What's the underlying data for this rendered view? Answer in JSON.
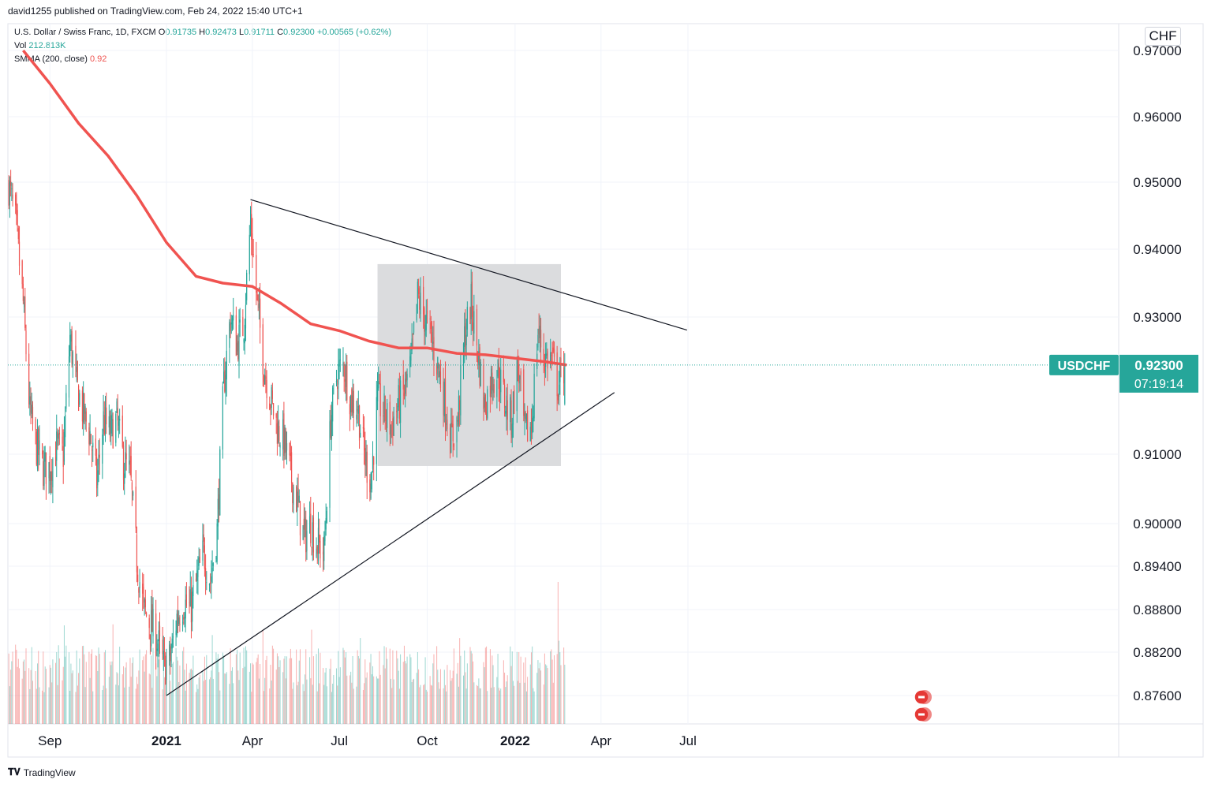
{
  "header": {
    "published": "david1255 published on TradingView.com, Feb 24, 2022 15:40 UTC+1"
  },
  "legend": {
    "symbol": "U.S. Dollar / Swiss Franc, 1D, FXCM",
    "o_label": "O",
    "o": "0.91735",
    "h_label": "H",
    "h": "0.92473",
    "l_label": "L",
    "l": "0.91711",
    "c_label": "C",
    "c": "0.92300",
    "change": "+0.00565 (+0.62%)",
    "vol_label": "Vol",
    "vol": "212.813K",
    "smma_label": "SMMA (200, close)",
    "smma": "0.92"
  },
  "currency": "CHF",
  "price_tag": {
    "symbol": "USDCHF",
    "price": "0.92300",
    "countdown": "07:19:14"
  },
  "footer": {
    "brand": "TradingView"
  },
  "colors": {
    "up": "#26a69a",
    "down": "#ef5350",
    "smma": "#f05350",
    "box": "#d9dadc"
  },
  "chart_data": {
    "type": "candlestick",
    "y_tick_labels": [
      "0.97000",
      "0.96000",
      "0.95000",
      "0.94000",
      "0.93000",
      "0.91000",
      "0.90000",
      "0.89400",
      "0.88800",
      "0.88200",
      "0.87600"
    ],
    "x_tick_labels": [
      "Sep",
      "2021",
      "Apr",
      "Jul",
      "Oct",
      "2022",
      "Apr",
      "Jul"
    ],
    "bold_x_labels": [
      "2021",
      "2022"
    ],
    "series_close_path": [
      [
        "2020-07-20",
        0.9495
      ],
      [
        "2020-07-27",
        0.944
      ],
      [
        "2020-08-04",
        0.932
      ],
      [
        "2020-08-11",
        0.916
      ],
      [
        "2020-08-18",
        0.911
      ],
      [
        "2020-08-25",
        0.908
      ],
      [
        "2020-09-01",
        0.908
      ],
      [
        "2020-09-08",
        0.911
      ],
      [
        "2020-09-15",
        0.91
      ],
      [
        "2020-09-22",
        0.927
      ],
      [
        "2020-09-29",
        0.92
      ],
      [
        "2020-10-06",
        0.916
      ],
      [
        "2020-10-13",
        0.913
      ],
      [
        "2020-10-20",
        0.906
      ],
      [
        "2020-10-27",
        0.915
      ],
      [
        "2020-11-03",
        0.913
      ],
      [
        "2020-11-10",
        0.915
      ],
      [
        "2020-11-17",
        0.909
      ],
      [
        "2020-11-24",
        0.907
      ],
      [
        "2020-12-01",
        0.895
      ],
      [
        "2020-12-08",
        0.888
      ],
      [
        "2020-12-15",
        0.886
      ],
      [
        "2020-12-22",
        0.884
      ],
      [
        "2020-12-29",
        0.88
      ],
      [
        "2021-01-05",
        0.881
      ],
      [
        "2021-01-12",
        0.887
      ],
      [
        "2021-01-19",
        0.889
      ],
      [
        "2021-01-26",
        0.888
      ],
      [
        "2021-02-02",
        0.892
      ],
      [
        "2021-02-09",
        0.896
      ],
      [
        "2021-02-16",
        0.892
      ],
      [
        "2021-02-23",
        0.899
      ],
      [
        "2021-03-02",
        0.92
      ],
      [
        "2021-03-09",
        0.93
      ],
      [
        "2021-03-16",
        0.926
      ],
      [
        "2021-03-23",
        0.929
      ],
      [
        "2021-03-30",
        0.944
      ],
      [
        "2021-04-06",
        0.932
      ],
      [
        "2021-04-13",
        0.923
      ],
      [
        "2021-04-20",
        0.918
      ],
      [
        "2021-04-27",
        0.914
      ],
      [
        "2021-05-04",
        0.912
      ],
      [
        "2021-05-11",
        0.907
      ],
      [
        "2021-05-18",
        0.903
      ],
      [
        "2021-05-25",
        0.898
      ],
      [
        "2021-06-01",
        0.9
      ],
      [
        "2021-06-08",
        0.897
      ],
      [
        "2021-06-15",
        0.896
      ],
      [
        "2021-06-22",
        0.915
      ],
      [
        "2021-06-29",
        0.922
      ],
      [
        "2021-07-06",
        0.923
      ],
      [
        "2021-07-13",
        0.918
      ],
      [
        "2021-07-20",
        0.917
      ],
      [
        "2021-07-27",
        0.91
      ],
      [
        "2021-08-03",
        0.906
      ],
      [
        "2021-08-10",
        0.918
      ],
      [
        "2021-08-17",
        0.916
      ],
      [
        "2021-08-24",
        0.914
      ],
      [
        "2021-08-31",
        0.917
      ],
      [
        "2021-09-07",
        0.919
      ],
      [
        "2021-09-14",
        0.923
      ],
      [
        "2021-09-21",
        0.933
      ],
      [
        "2021-09-28",
        0.93
      ],
      [
        "2021-10-05",
        0.927
      ],
      [
        "2021-10-12",
        0.923
      ],
      [
        "2021-10-19",
        0.918
      ],
      [
        "2021-10-26",
        0.912
      ],
      [
        "2021-11-02",
        0.915
      ],
      [
        "2021-11-09",
        0.927
      ],
      [
        "2021-11-16",
        0.932
      ],
      [
        "2021-11-23",
        0.925
      ],
      [
        "2021-11-30",
        0.917
      ],
      [
        "2021-12-07",
        0.921
      ],
      [
        "2021-12-14",
        0.922
      ],
      [
        "2021-12-21",
        0.918
      ],
      [
        "2021-12-28",
        0.915
      ],
      [
        "2022-01-04",
        0.923
      ],
      [
        "2022-01-11",
        0.913
      ],
      [
        "2022-01-18",
        0.914
      ],
      [
        "2022-01-25",
        0.928
      ],
      [
        "2022-02-01",
        0.924
      ],
      [
        "2022-02-08",
        0.924
      ],
      [
        "2022-02-15",
        0.92
      ],
      [
        "2022-02-22",
        0.923
      ]
    ],
    "smma_200": [
      [
        "2020-08-04",
        0.97
      ],
      [
        "2020-09-01",
        0.965
      ],
      [
        "2020-10-01",
        0.959
      ],
      [
        "2020-11-01",
        0.954
      ],
      [
        "2020-12-01",
        0.948
      ],
      [
        "2021-01-01",
        0.941
      ],
      [
        "2021-02-01",
        0.936
      ],
      [
        "2021-03-01",
        0.935
      ],
      [
        "2021-04-01",
        0.9345
      ],
      [
        "2021-05-01",
        0.932
      ],
      [
        "2021-06-01",
        0.929
      ],
      [
        "2021-07-01",
        0.928
      ],
      [
        "2021-08-01",
        0.9265
      ],
      [
        "2021-09-01",
        0.9255
      ],
      [
        "2021-10-01",
        0.9255
      ],
      [
        "2021-11-01",
        0.9247
      ],
      [
        "2021-12-01",
        0.9245
      ],
      [
        "2022-01-01",
        0.924
      ],
      [
        "2022-02-01",
        0.9235
      ],
      [
        "2022-02-24",
        0.923
      ]
    ],
    "trendlines": [
      {
        "from": [
          "2021-03-30",
          0.9474
        ],
        "to": [
          "2022-06-30",
          0.9281
        ]
      },
      {
        "from": [
          "2021-01-01",
          0.876
        ],
        "to": [
          "2022-04-15",
          0.919
        ]
      }
    ],
    "range_box": {
      "from": "2021-08-10",
      "to": "2022-02-18",
      "top": 0.9378,
      "bottom": 0.9083
    }
  }
}
